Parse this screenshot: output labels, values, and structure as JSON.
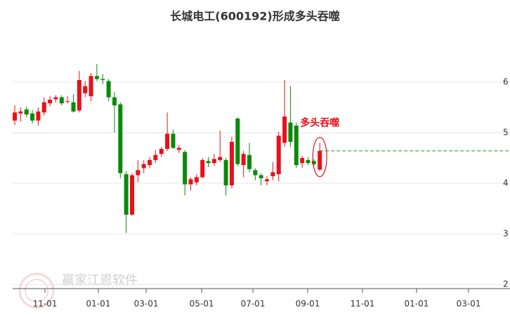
{
  "chart_data": {
    "type": "candlestick",
    "title": "长城电工(600192)形成多头吞噬",
    "annotation": "多头吞噬",
    "watermark": "赢家江恩软件",
    "up_color": "#e8101a",
    "down_color": "#0a8a0a",
    "grid": true,
    "open": [
      5.24,
      5.38,
      5.46,
      5.38,
      5.24,
      5.4,
      5.58,
      5.66,
      5.7,
      5.62,
      5.6,
      5.44,
      5.78,
      5.72,
      6.12,
      6.06,
      6.02,
      5.7,
      5.56,
      4.18,
      3.38,
      4.16,
      4.3,
      4.36,
      4.46,
      4.58,
      4.68,
      4.98,
      4.66,
      4.62,
      3.98,
      4.02,
      4.12,
      4.44,
      4.4,
      4.46,
      4.46,
      3.96,
      5.28,
      4.36,
      4.56,
      4.26,
      4.16,
      4.04,
      4.14,
      4.18,
      4.8,
      5.2,
      5.14,
      4.4,
      4.46,
      4.44,
      4.27
    ],
    "high": [
      5.54,
      5.5,
      5.52,
      5.45,
      5.5,
      5.7,
      5.72,
      5.74,
      5.74,
      5.72,
      5.76,
      6.22,
      6.02,
      6.18,
      6.36,
      6.16,
      6.06,
      5.8,
      5.6,
      4.24,
      4.2,
      4.46,
      4.46,
      4.52,
      4.66,
      4.72,
      5.4,
      5.06,
      4.76,
      4.66,
      4.12,
      4.18,
      4.5,
      4.52,
      4.58,
      5.04,
      4.5,
      4.92,
      5.3,
      4.64,
      4.8,
      4.3,
      4.2,
      4.14,
      4.42,
      5.02,
      6.04,
      5.92,
      5.2,
      4.54,
      4.52,
      4.48,
      4.8
    ],
    "low": [
      5.15,
      5.22,
      5.3,
      5.18,
      5.14,
      5.34,
      5.52,
      5.6,
      5.54,
      5.58,
      5.4,
      5.4,
      5.7,
      5.62,
      6.02,
      5.96,
      5.62,
      5.0,
      4.1,
      3.02,
      3.36,
      4.02,
      4.2,
      4.3,
      4.4,
      4.52,
      4.64,
      4.68,
      4.6,
      3.76,
      3.86,
      3.96,
      4.1,
      4.32,
      4.34,
      4.42,
      3.76,
      3.9,
      4.34,
      4.12,
      4.22,
      4.06,
      3.96,
      3.96,
      4.06,
      4.04,
      4.72,
      4.72,
      4.3,
      4.3,
      4.36,
      4.34,
      4.24
    ],
    "close": [
      5.4,
      5.42,
      5.36,
      5.24,
      5.42,
      5.6,
      5.65,
      5.7,
      5.58,
      5.62,
      5.42,
      6.04,
      5.92,
      6.12,
      6.06,
      6.04,
      5.7,
      5.54,
      4.2,
      3.38,
      4.16,
      4.26,
      4.38,
      4.46,
      4.56,
      4.68,
      4.98,
      4.7,
      4.7,
      3.98,
      4.08,
      4.12,
      4.46,
      4.4,
      4.48,
      4.52,
      3.96,
      4.82,
      4.38,
      4.58,
      4.28,
      4.16,
      4.1,
      4.08,
      4.22,
      4.94,
      5.32,
      4.82,
      4.36,
      4.5,
      4.4,
      4.38,
      4.64
    ],
    "ylim": [
      1.92,
      6.9
    ],
    "yticks": [
      2,
      3,
      4,
      5,
      6
    ],
    "xlim": [
      -0.36,
      84.43
    ],
    "xticks": [
      {
        "value": 5.15,
        "label": "11-01"
      },
      {
        "value": 14.25,
        "label": "01-01"
      },
      {
        "value": 22.4,
        "label": "03-01"
      },
      {
        "value": 31.86,
        "label": "05-01"
      },
      {
        "value": 40.6,
        "label": "07-01"
      },
      {
        "value": 49.94,
        "label": "09-01"
      },
      {
        "value": 59.28,
        "label": "11-01"
      },
      {
        "value": 68.5,
        "label": "01-01"
      },
      {
        "value": 77.37,
        "label": "03-01"
      }
    ]
  }
}
